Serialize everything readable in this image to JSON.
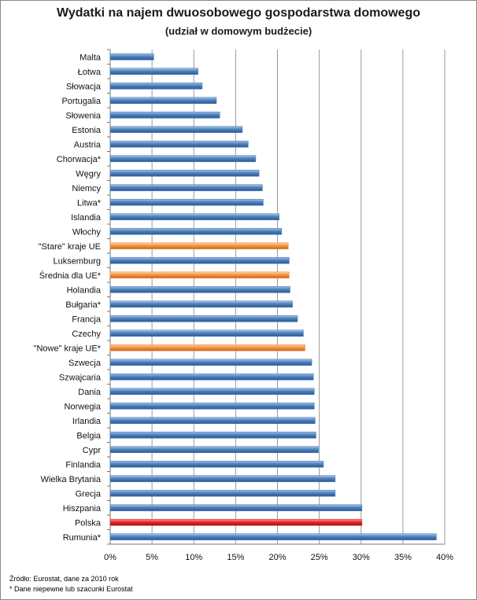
{
  "chart_data": {
    "type": "bar",
    "orientation": "horizontal",
    "title": "Wydatki na najem dwuosobowego gospodarstwa domowego",
    "subtitle": "(udział w domowym budżecie)",
    "categories": [
      "Malta",
      "Łotwa",
      "Słowacja",
      "Portugalia",
      "Słowenia",
      "Estonia",
      "Austria",
      "Chorwacja*",
      "Węgry",
      "Niemcy",
      "Litwa*",
      "Islandia",
      "Włochy",
      "\"Stare\" kraje UE",
      "Luksemburg",
      "Średnia dla UE*",
      "Holandia",
      "Bułgaria*",
      "Francja",
      "Czechy",
      "\"Nowe\" kraje UE*",
      "Szwecja",
      "Szwajcaria",
      "Dania",
      "Norwegia",
      "Irlandia",
      "Belgia",
      "Cypr",
      "Finlandia",
      "Wielka Brytania",
      "Grecja",
      "Hiszpania",
      "Polska",
      "Rumunia*"
    ],
    "values": [
      5.2,
      10.5,
      11.0,
      12.7,
      13.1,
      15.8,
      16.5,
      17.4,
      17.8,
      18.2,
      18.3,
      20.2,
      20.5,
      21.3,
      21.4,
      21.4,
      21.5,
      21.8,
      22.4,
      23.1,
      23.3,
      24.1,
      24.3,
      24.4,
      24.4,
      24.5,
      24.6,
      24.9,
      25.5,
      26.9,
      26.9,
      30.1,
      30.1,
      39.0
    ],
    "bar_colors": [
      "blue",
      "blue",
      "blue",
      "blue",
      "blue",
      "blue",
      "blue",
      "blue",
      "blue",
      "blue",
      "blue",
      "blue",
      "blue",
      "orange",
      "blue",
      "orange",
      "blue",
      "blue",
      "blue",
      "blue",
      "orange",
      "blue",
      "blue",
      "blue",
      "blue",
      "blue",
      "blue",
      "blue",
      "blue",
      "blue",
      "blue",
      "blue",
      "red",
      "blue"
    ],
    "xlim": [
      0,
      40
    ],
    "xticks": [
      "0%",
      "5%",
      "10%",
      "15%",
      "20%",
      "25%",
      "30%",
      "35%",
      "40%"
    ],
    "xlabel": "",
    "ylabel": "",
    "grid": true
  },
  "colors": {
    "blue": "#4f81bd",
    "orange": "#f79646",
    "red": "#e03030"
  },
  "footnotes": {
    "source": "Źródło: Eurostat, dane za 2010 rok",
    "note": "* Dane niepewne lub szacunki Eurostat"
  }
}
